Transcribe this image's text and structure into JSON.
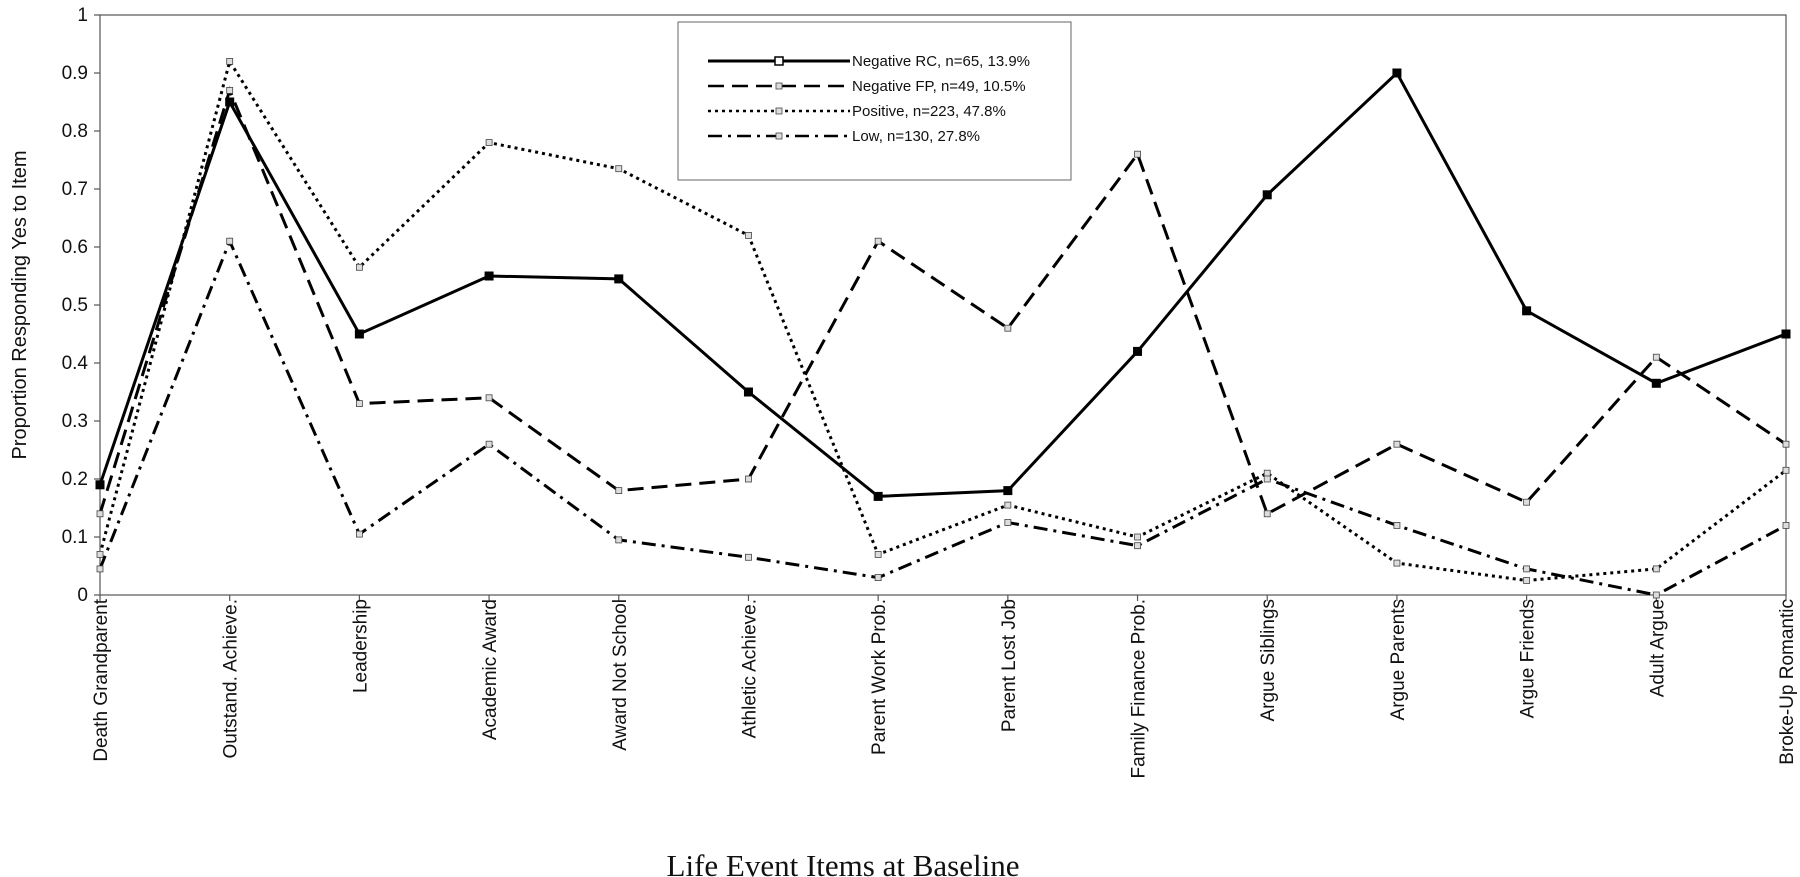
{
  "chart_data": {
    "type": "line",
    "title": "",
    "xlabel": "Life Event Items at Baseline",
    "ylabel": "Proportion Responding Yes to Item",
    "ylim": [
      0,
      1
    ],
    "yticks": [
      "0",
      "0.1",
      "0.2",
      "0.3",
      "0.4",
      "0.5",
      "0.6",
      "0.7",
      "0.8",
      "0.9",
      "1"
    ],
    "grid": false,
    "legend_position": "top-center",
    "categories": [
      "Death Grandparent",
      "Outstand. Achieve.",
      "Leadership",
      "Academic Award",
      "Award Not School",
      "Athletic Achieve.",
      "Parent Work Prob.",
      "Parent Lost Job",
      "Family Finance Prob.",
      "Argue Siblings",
      "Argue Parents",
      "Argue Friends",
      "Adult Argue",
      "Broke-Up Romantic"
    ],
    "series": [
      {
        "name": "Negative RC, n=65, 13.9%",
        "style": "solid",
        "color": "#000000",
        "values": [
          0.19,
          0.85,
          0.45,
          0.55,
          0.545,
          0.35,
          0.17,
          0.18,
          0.42,
          0.69,
          0.9,
          0.49,
          0.365,
          0.45
        ]
      },
      {
        "name": "Negative FP, n=49, 10.5%",
        "style": "dashed",
        "color": "#000000",
        "values": [
          0.14,
          0.87,
          0.33,
          0.34,
          0.18,
          0.2,
          0.61,
          0.46,
          0.76,
          0.14,
          0.26,
          0.16,
          0.41,
          0.26
        ]
      },
      {
        "name": "Positive, n=223, 47.8%",
        "style": "dotted",
        "color": "#000000",
        "values": [
          0.07,
          0.92,
          0.565,
          0.78,
          0.735,
          0.62,
          0.07,
          0.155,
          0.1,
          0.21,
          0.055,
          0.025,
          0.045,
          0.215
        ]
      },
      {
        "name": "Low, n=130, 27.8%",
        "style": "dashdot",
        "color": "#000000",
        "values": [
          0.045,
          0.61,
          0.105,
          0.26,
          0.095,
          0.065,
          0.03,
          0.125,
          0.085,
          0.2,
          0.12,
          0.045,
          0.0,
          0.12
        ]
      }
    ]
  }
}
